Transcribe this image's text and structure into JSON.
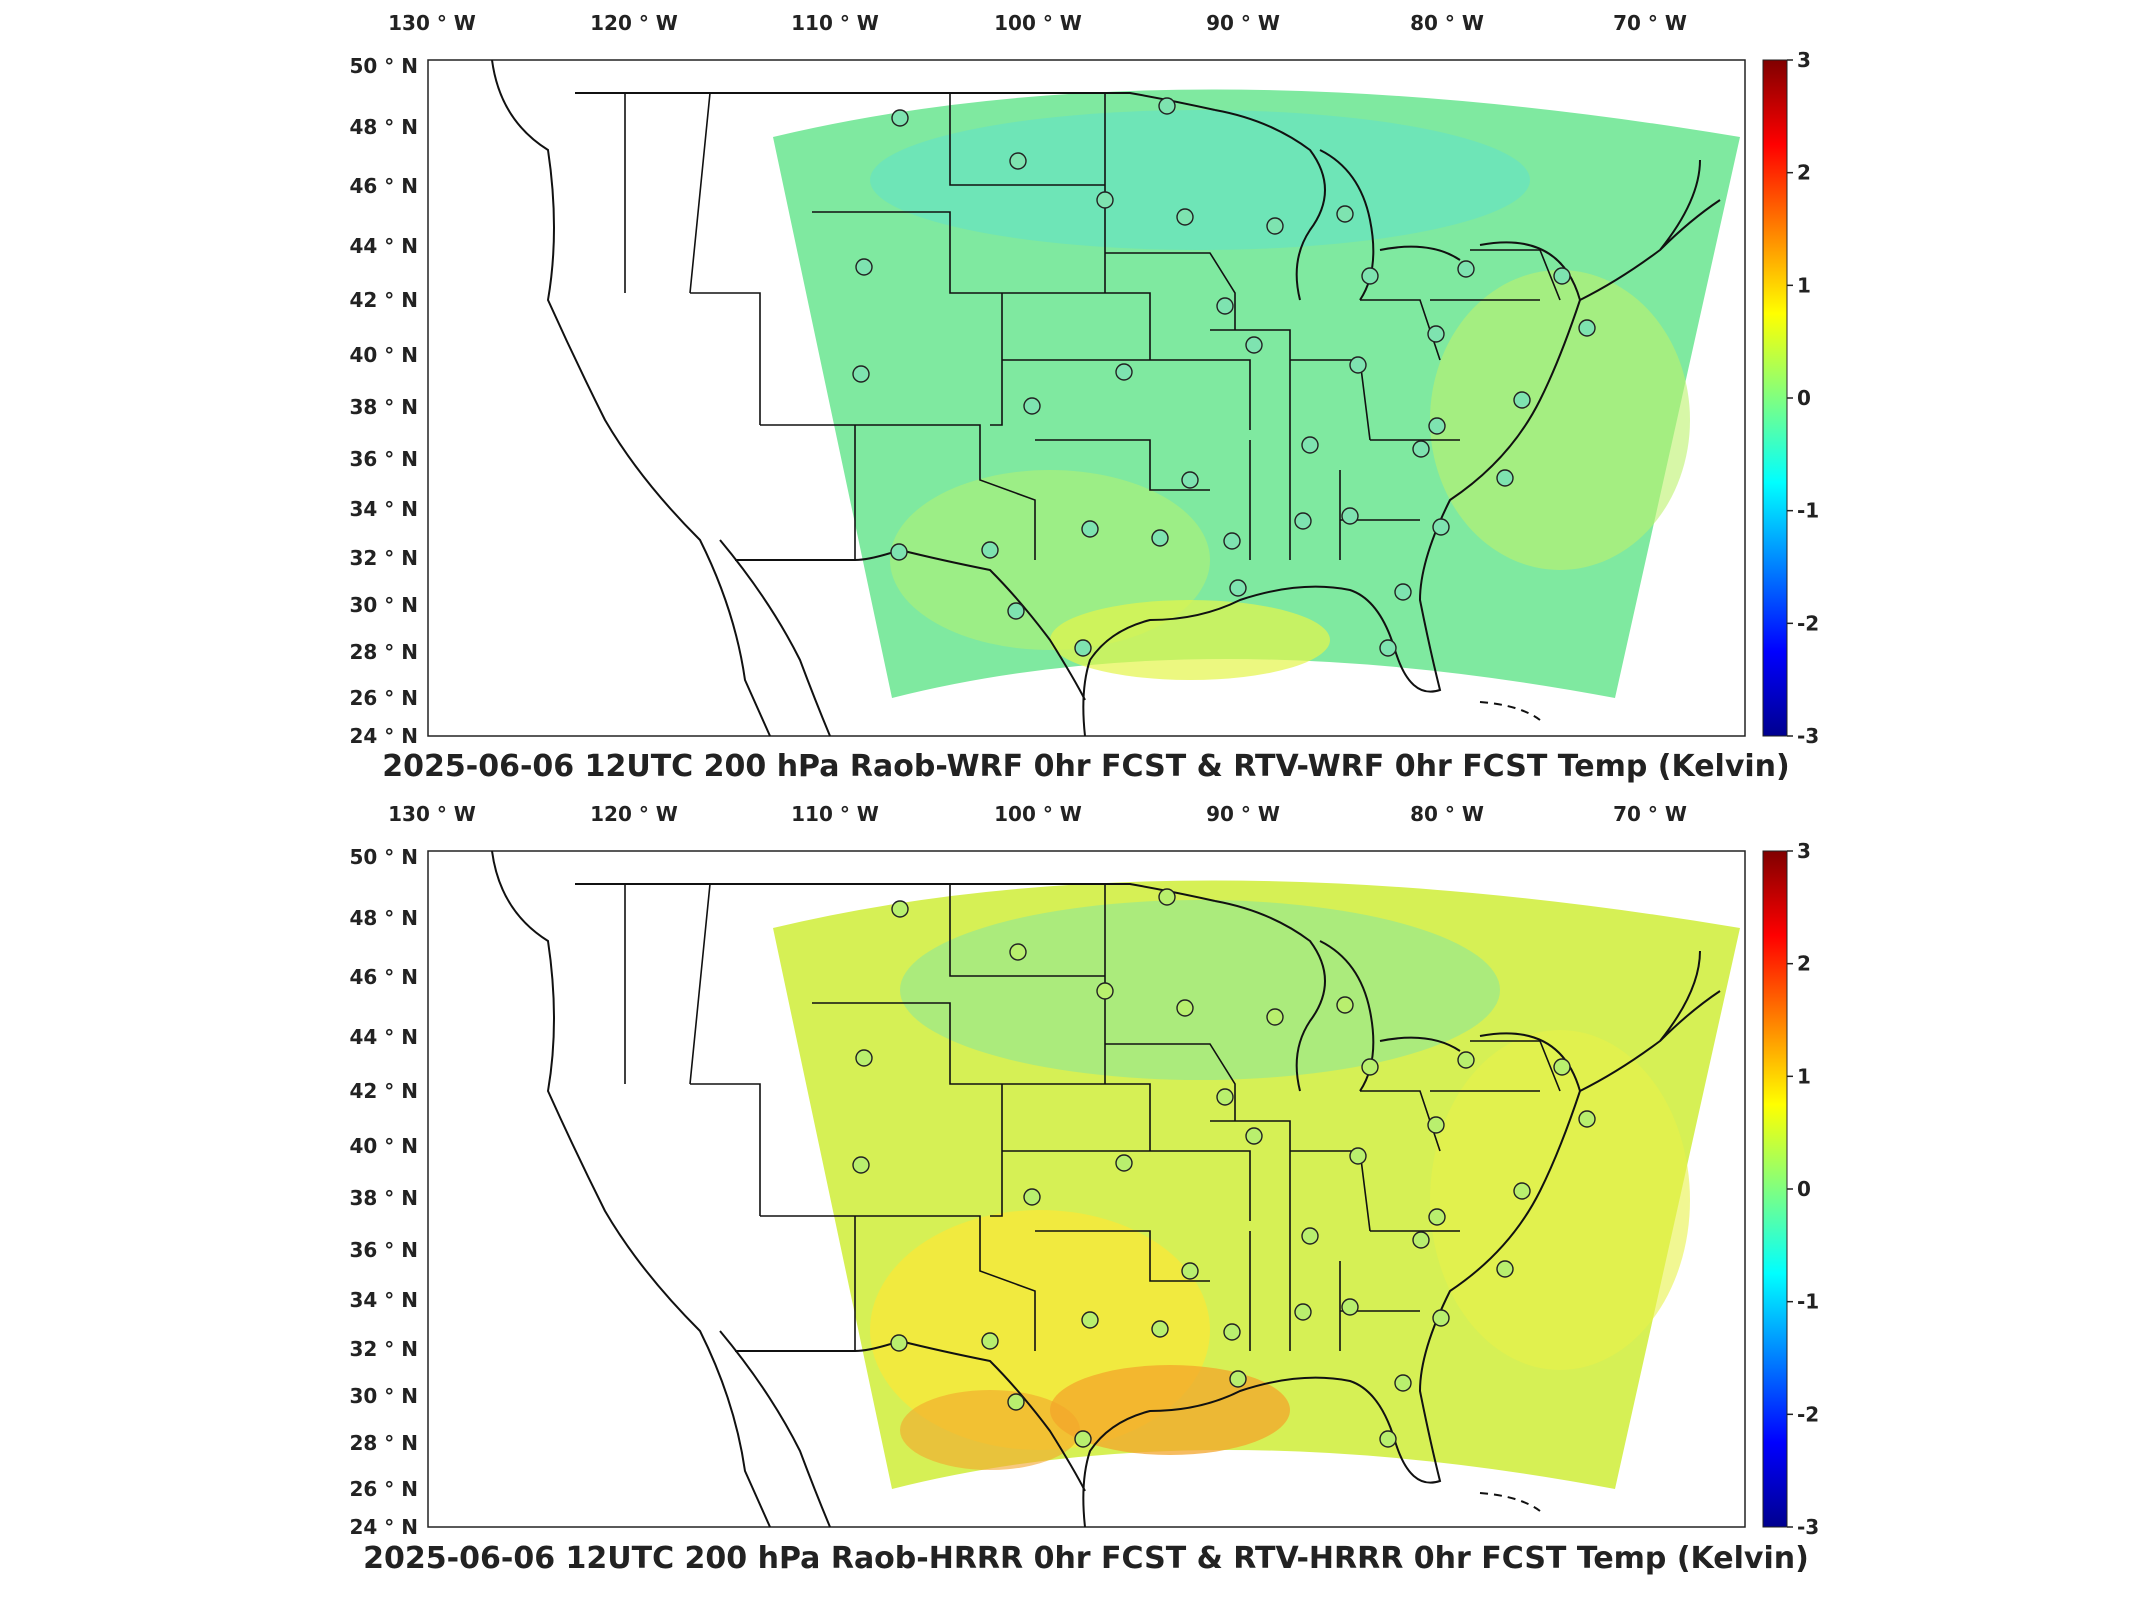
{
  "figure": {
    "lon_labels": [
      "130",
      "120",
      "110",
      "100",
      "90",
      "80",
      "70"
    ],
    "lon_hemisphere": "W",
    "lat_labels": [
      "50",
      "48",
      "46",
      "44",
      "42",
      "40",
      "38",
      "36",
      "34",
      "32",
      "30",
      "28",
      "26",
      "24"
    ],
    "lat_hemisphere": "N",
    "degree_symbol": "°",
    "colorbar_ticks": [
      "3",
      "2",
      "1",
      "0",
      "-1",
      "-2",
      "-3"
    ],
    "colormap": [
      "#00008f",
      "#0000ff",
      "#0080ff",
      "#00ffff",
      "#80ff80",
      "#ffff00",
      "#ff8000",
      "#ff0000",
      "#800000"
    ]
  },
  "panels": [
    {
      "title": "2025-06-06 12UTC 200 hPa Raob-WRF 0hr FCST & RTV-WRF 0hr FCST Temp (Kelvin)",
      "field_colors": {
        "base": "#7fe9a0",
        "north": "#63e2c6",
        "south": "#a8ef7a",
        "gulf": "#e4f54a",
        "east": "#bdf26d"
      },
      "stations_color": "#7ee3b0"
    },
    {
      "title": "2025-06-06 12UTC 200 hPa Raob-HRRR 0hr FCST & RTV-HRRR 0hr FCST Temp (Kelvin)",
      "field_colors": {
        "base": "#d6f055",
        "north": "#8ee896",
        "south": "#f7e93a",
        "gulf": "#f3a52b",
        "east": "#e8f24a"
      },
      "stations_color": "#b9ef6e"
    }
  ]
}
